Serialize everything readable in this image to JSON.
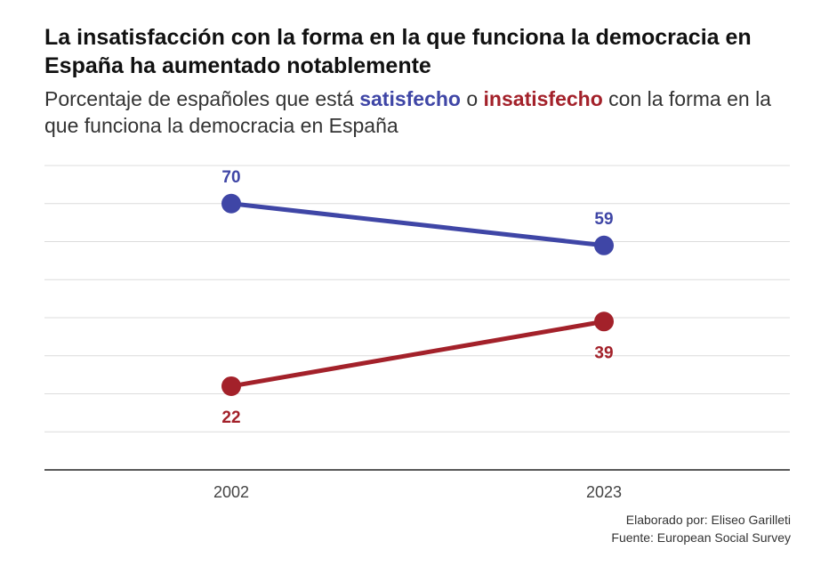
{
  "header": {
    "title": "La insatisfacción con la forma en la que funciona la democracia en España ha aumentado notablemente",
    "subtitle_part1": "Porcentaje de españoles que está ",
    "subtitle_satisfied": "satisfecho",
    "subtitle_part2": " o ",
    "subtitle_dissatisfied": "insatisfecho",
    "subtitle_part3": " con la forma en la que funciona la democracia en España"
  },
  "chart_data": {
    "type": "line",
    "x": [
      "2002",
      "2023"
    ],
    "series": [
      {
        "name": "satisfecho",
        "values": [
          70,
          59
        ],
        "color": "#3f46a6"
      },
      {
        "name": "insatisfecho",
        "values": [
          22,
          39
        ],
        "color": "#a3212a"
      }
    ],
    "ylim": [
      0,
      80
    ],
    "grid": true,
    "xlabel": "",
    "ylabel": ""
  },
  "footer": {
    "credit": "Elaborado por: Eliseo Garilleti",
    "source": "Fuente: European Social Survey"
  }
}
